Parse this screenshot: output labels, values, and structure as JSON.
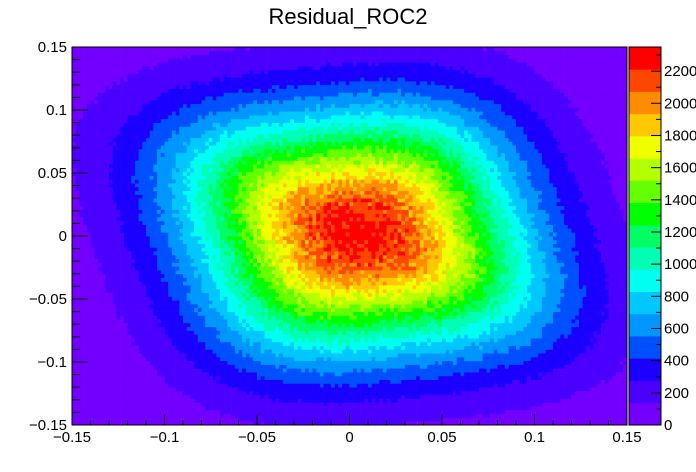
{
  "chart_data": {
    "type": "heatmap",
    "title": "Residual_ROC2",
    "xlabel": "",
    "ylabel": "",
    "xlim": [
      -0.15,
      0.15
    ],
    "ylim": [
      -0.15,
      0.15
    ],
    "zlim": [
      0,
      2350
    ],
    "xticks": [
      -0.15,
      -0.1,
      -0.05,
      0,
      0.05,
      0.1,
      0.15
    ],
    "xtick_labels": [
      "−0.15",
      "−0.1",
      "−0.05",
      "0",
      "0.05",
      "0.1",
      "0.15"
    ],
    "yticks": [
      -0.15,
      -0.1,
      -0.05,
      0,
      0.05,
      0.1,
      0.15
    ],
    "ytick_labels": [
      "−0.15",
      "−0.1",
      "−0.05",
      "0",
      "0.05",
      "0.1",
      "0.15"
    ],
    "zticks": [
      0,
      200,
      400,
      600,
      800,
      1000,
      1200,
      1400,
      1600,
      1800,
      2000,
      2200
    ],
    "ztick_labels": [
      "0",
      "200",
      "400",
      "600",
      "800",
      "1000",
      "1200",
      "1400",
      "1600",
      "1800",
      "2000",
      "2200"
    ],
    "bins": {
      "nx": 150,
      "ny": 100
    },
    "peak": {
      "x": 0.005,
      "y": 0.003,
      "value": 2300
    },
    "grid": false,
    "legend": "none",
    "colorbar": "right",
    "colors": [
      "#7300ff",
      "#4b00ff",
      "#1b00ff",
      "#0050ff",
      "#0096ff",
      "#00c8ff",
      "#00fff0",
      "#00ffb4",
      "#00ff64",
      "#00ff00",
      "#64ff00",
      "#b4ff00",
      "#f0ff00",
      "#ffc800",
      "#ff8c00",
      "#ff4600",
      "#ff0000"
    ]
  }
}
